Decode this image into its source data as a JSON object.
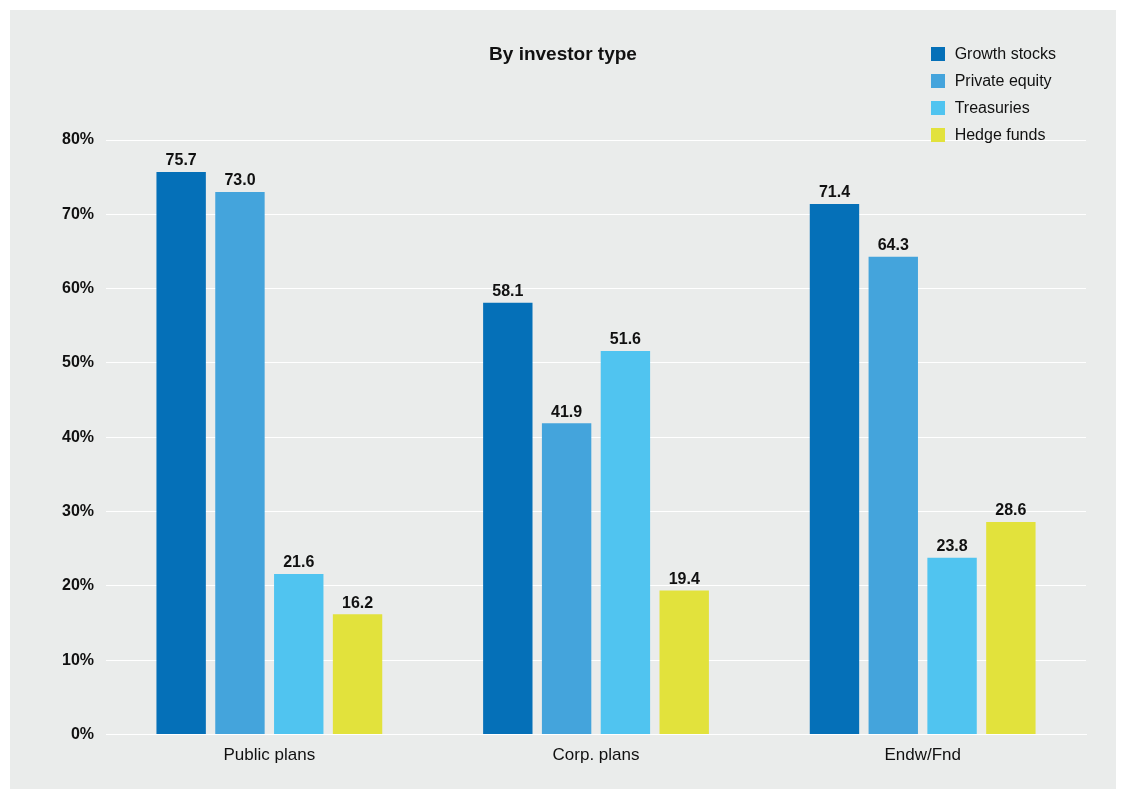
{
  "chart_data": {
    "type": "bar",
    "title": "By investor type",
    "categories": [
      "Public plans",
      "Corp. plans",
      "Endw/Fnd"
    ],
    "series": [
      {
        "name": "Growth stocks",
        "color": "#0570b8",
        "values": [
          75.7,
          58.1,
          71.4
        ],
        "value_labels": [
          "75.7",
          "58.1",
          "71.4"
        ]
      },
      {
        "name": "Private equity",
        "color": "#44a4dc",
        "values": [
          73.0,
          41.9,
          64.3
        ],
        "value_labels": [
          "73.0",
          "41.9",
          "64.3"
        ]
      },
      {
        "name": "Treasuries",
        "color": "#50c4f0",
        "values": [
          21.6,
          51.6,
          23.8
        ],
        "value_labels": [
          "21.6",
          "51.6",
          "23.8"
        ]
      },
      {
        "name": "Hedge funds",
        "color": "#e2e23c",
        "values": [
          16.2,
          19.4,
          28.6
        ],
        "value_labels": [
          "16.2",
          "19.4",
          "28.6"
        ]
      }
    ],
    "ylim": [
      0,
      80
    ],
    "yticks": [
      {
        "value": 0,
        "label": "0%"
      },
      {
        "value": 10,
        "label": "10%"
      },
      {
        "value": 20,
        "label": "20%"
      },
      {
        "value": 30,
        "label": "30%"
      },
      {
        "value": 40,
        "label": "40%"
      },
      {
        "value": 50,
        "label": "50%"
      },
      {
        "value": 60,
        "label": "60%"
      },
      {
        "value": 70,
        "label": "70%"
      },
      {
        "value": 80,
        "label": "80%"
      }
    ],
    "grid": "y",
    "legend": "top right"
  }
}
